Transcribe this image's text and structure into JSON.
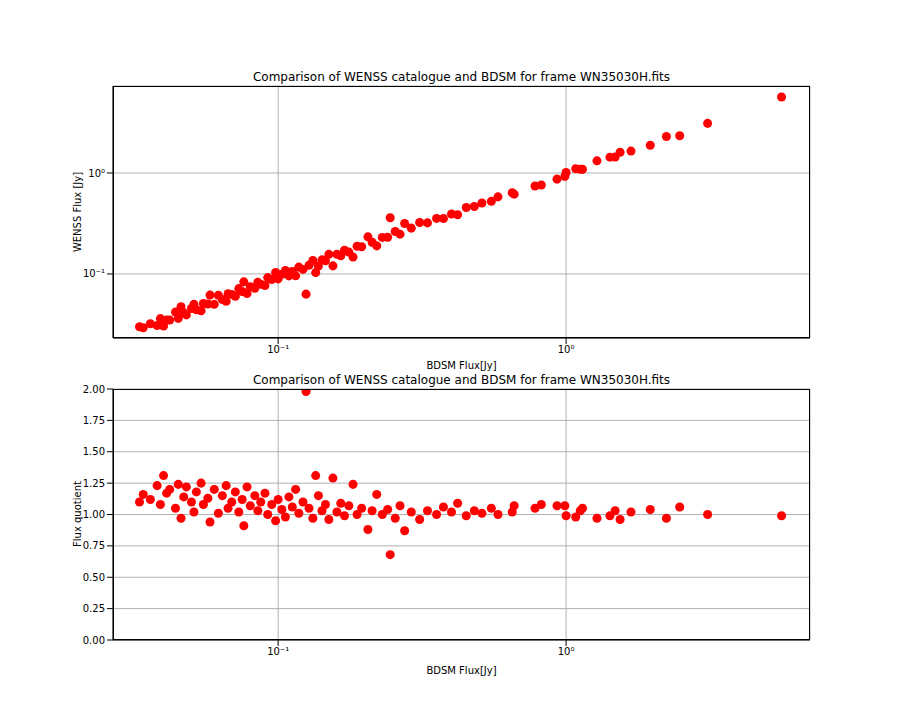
{
  "chart_data": [
    {
      "type": "scatter",
      "title": "Comparison of WENSS catalogue and BDSM for frame WN35030H.fits",
      "x_label": "BDSM Flux[Jy]",
      "y_label": "WENSS Flux [Jy]",
      "log": true,
      "grid": true,
      "color": "#ff0000",
      "marker": "circle",
      "xlim": [
        0.0267,
        7.03
      ],
      "ylim": [
        0.0232,
        7.27
      ],
      "xticks": [
        {
          "value": 0.1,
          "label": "10⁻¹"
        },
        {
          "value": 1,
          "label": "10⁰"
        }
      ],
      "yticks": [
        {
          "value": 0.1,
          "label": "10⁻¹"
        },
        {
          "value": 1,
          "label": "10⁰"
        }
      ],
      "x": [
        0.033,
        0.034,
        0.036,
        0.038,
        0.039,
        0.04,
        0.041,
        0.042,
        0.044,
        0.045,
        0.046,
        0.047,
        0.048,
        0.05,
        0.051,
        0.052,
        0.054,
        0.055,
        0.057,
        0.058,
        0.06,
        0.062,
        0.064,
        0.066,
        0.067,
        0.069,
        0.071,
        0.073,
        0.075,
        0.076,
        0.078,
        0.08,
        0.083,
        0.085,
        0.087,
        0.09,
        0.092,
        0.095,
        0.098,
        0.1,
        0.103,
        0.106,
        0.109,
        0.112,
        0.115,
        0.118,
        0.122,
        0.125,
        0.128,
        0.132,
        0.135,
        0.138,
        0.142,
        0.146,
        0.15,
        0.155,
        0.16,
        0.165,
        0.17,
        0.176,
        0.182,
        0.188,
        0.195,
        0.205,
        0.212,
        0.22,
        0.23,
        0.24,
        0.245,
        0.255,
        0.265,
        0.275,
        0.29,
        0.31,
        0.33,
        0.355,
        0.375,
        0.4,
        0.42,
        0.45,
        0.48,
        0.51,
        0.55,
        0.58,
        0.65,
        0.66,
        0.78,
        0.82,
        0.93,
        0.99,
        1.0,
        1.08,
        1.12,
        1.14,
        1.28,
        1.42,
        1.48,
        1.54,
        1.68,
        1.96,
        2.23,
        2.48,
        3.1,
        5.6
      ],
      "values": [
        0.03,
        0.0293,
        0.0321,
        0.0309,
        0.0361,
        0.0305,
        0.035,
        0.035,
        0.0419,
        0.0363,
        0.0474,
        0.0412,
        0.0393,
        0.0455,
        0.05,
        0.0441,
        0.0432,
        0.0509,
        0.0504,
        0.0617,
        0.05,
        0.0614,
        0.0557,
        0.0537,
        0.0638,
        0.0627,
        0.0602,
        0.0716,
        0.067,
        0.0835,
        0.0639,
        0.0748,
        0.0722,
        0.0825,
        0.0791,
        0.0769,
        0.092,
        0.088,
        0.1032,
        0.0893,
        0.099,
        0.1082,
        0.0956,
        0.1057,
        0.0958,
        0.1168,
        0.1109,
        0.0631,
        0.1219,
        0.1361,
        0.1031,
        0.12,
        0.1379,
        0.1352,
        0.1563,
        0.1202,
        0.1569,
        0.1514,
        0.1717,
        0.1645,
        0.1468,
        0.188,
        0.1857,
        0.233,
        0.2058,
        0.1897,
        0.23,
        0.2308,
        0.3603,
        0.2629,
        0.2477,
        0.3161,
        0.2843,
        0.3229,
        0.3204,
        0.355,
        0.3538,
        0.3922,
        0.3853,
        0.4545,
        0.466,
        0.505,
        0.5238,
        0.58,
        0.6373,
        0.6168,
        0.7429,
        0.7593,
        0.8692,
        0.9252,
        1.0101,
        1.102,
        1.0874,
        1.0857,
        1.3196,
        1.4343,
        1.4369,
        1.6042,
        1.6471,
        1.8846,
        2.299,
        2.3396,
        3.1,
        5.6566
      ]
    },
    {
      "type": "scatter",
      "title": "Comparison of WENSS catalogue and BDSM for frame WN35030H.fits",
      "x_label": "BDSM Flux[Jy]",
      "y_label": "Flux quotient",
      "log": "x",
      "grid": true,
      "color": "#ff0000",
      "marker": "circle",
      "xlim": [
        0.0267,
        7.03
      ],
      "ylim": [
        0,
        2
      ],
      "xticks": [
        {
          "value": 0.1,
          "label": "10⁻¹"
        },
        {
          "value": 1,
          "label": "10⁰"
        }
      ],
      "yticks": [
        {
          "value": 0,
          "label": "0.00"
        },
        {
          "value": 0.25,
          "label": "0.25"
        },
        {
          "value": 0.5,
          "label": "0.50"
        },
        {
          "value": 0.75,
          "label": "0.75"
        },
        {
          "value": 1,
          "label": "1.00"
        },
        {
          "value": 1.25,
          "label": "1.25"
        },
        {
          "value": 1.5,
          "label": "1.50"
        },
        {
          "value": 1.75,
          "label": "1.75"
        },
        {
          "value": 2,
          "label": "2.00"
        }
      ],
      "x": [
        0.033,
        0.034,
        0.036,
        0.038,
        0.039,
        0.04,
        0.041,
        0.042,
        0.044,
        0.045,
        0.046,
        0.047,
        0.048,
        0.05,
        0.051,
        0.052,
        0.054,
        0.055,
        0.057,
        0.058,
        0.06,
        0.062,
        0.064,
        0.066,
        0.067,
        0.069,
        0.071,
        0.073,
        0.075,
        0.076,
        0.078,
        0.08,
        0.083,
        0.085,
        0.087,
        0.09,
        0.092,
        0.095,
        0.098,
        0.1,
        0.103,
        0.106,
        0.109,
        0.112,
        0.115,
        0.118,
        0.122,
        0.125,
        0.128,
        0.132,
        0.135,
        0.138,
        0.142,
        0.146,
        0.15,
        0.155,
        0.16,
        0.165,
        0.17,
        0.176,
        0.182,
        0.188,
        0.195,
        0.205,
        0.212,
        0.22,
        0.23,
        0.24,
        0.245,
        0.255,
        0.265,
        0.275,
        0.29,
        0.31,
        0.33,
        0.355,
        0.375,
        0.4,
        0.42,
        0.45,
        0.48,
        0.51,
        0.55,
        0.58,
        0.65,
        0.66,
        0.78,
        0.82,
        0.93,
        0.99,
        1.0,
        1.08,
        1.12,
        1.14,
        1.28,
        1.42,
        1.48,
        1.54,
        1.68,
        1.96,
        2.23,
        2.48,
        3.1,
        5.6
      ],
      "values": [
        1.1,
        1.16,
        1.12,
        1.23,
        1.08,
        1.31,
        1.17,
        1.2,
        1.05,
        1.24,
        0.97,
        1.14,
        1.22,
        1.1,
        1.02,
        1.18,
        1.25,
        1.08,
        1.13,
        0.94,
        1.2,
        1.01,
        1.15,
        1.23,
        1.05,
        1.1,
        1.18,
        1.02,
        1.12,
        0.91,
        1.22,
        1.07,
        1.15,
        1.03,
        1.1,
        1.17,
        1.0,
        1.08,
        0.95,
        1.12,
        1.04,
        0.98,
        1.14,
        1.06,
        1.2,
        1.01,
        1.1,
        1.98,
        1.05,
        0.97,
        1.31,
        1.15,
        1.03,
        1.08,
        0.96,
        1.29,
        1.02,
        1.09,
        0.99,
        1.07,
        1.24,
        1.0,
        1.05,
        0.88,
        1.03,
        1.16,
        1.0,
        1.04,
        0.68,
        0.97,
        1.07,
        0.87,
        1.02,
        0.96,
        1.03,
        1.0,
        1.06,
        1.02,
        1.09,
        0.99,
        1.03,
        1.01,
        1.05,
        1.0,
        1.02,
        1.07,
        1.05,
        1.08,
        1.07,
        1.07,
        0.99,
        0.98,
        1.03,
        1.05,
        0.97,
        0.99,
        1.03,
        0.96,
        1.02,
        1.04,
        0.97,
        1.06,
        1.0,
        0.99
      ]
    }
  ]
}
